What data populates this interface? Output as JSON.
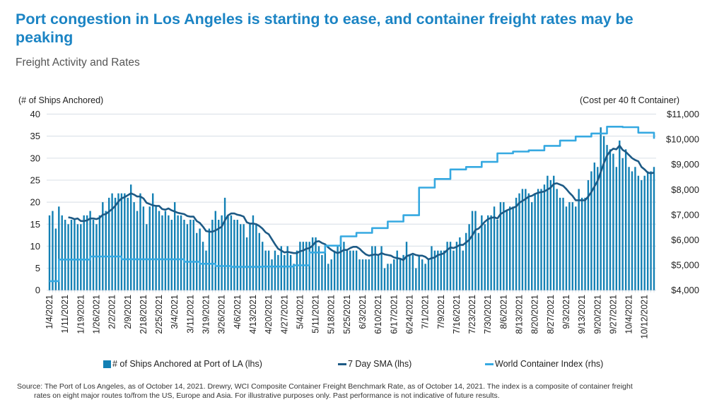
{
  "title": "Port congestion in Los Angeles is starting to ease, and container freight rates may be peaking",
  "subtitle": "Freight Activity and Rates",
  "footer": {
    "source_line1": "Source: The Port of Los Angeles, as of October 14, 2021. Drewry, WCI Composite Container Freight Benchmark Rate, as of October 14, 2021. The index is a composite of container freight",
    "source_line2": "rates on eight major routes to/from the US, Europe and Asia. For illustrative purposes only. Past performance is not indicative of future results."
  },
  "chart_data": {
    "type": "bar+line",
    "ylabel_left": "(# of Ships Anchored)",
    "ylabel_right": "(Cost per 40 ft Container)",
    "ylim_left": [
      0,
      40
    ],
    "ylim_right": [
      4000,
      11000
    ],
    "yticks_left": [
      "0",
      "5",
      "10",
      "15",
      "20",
      "25",
      "30",
      "35",
      "40"
    ],
    "yticks_right": [
      "$4,000",
      "$5,000",
      "$6,000",
      "$7,000",
      "$8,000",
      "$9,000",
      "$10,000",
      "$11,000"
    ],
    "grid": true,
    "legend_position": "bottom",
    "x_tick_labels": [
      "1/4/2021",
      "1/11/2021",
      "1/19/2021",
      "1/26/2021",
      "2/2/2021",
      "2/9/2021",
      "2/18/2021",
      "2/25/2021",
      "3/4/2021",
      "3/11/2021",
      "3/19/2021",
      "3/26/2021",
      "4/6/2021",
      "4/13/2021",
      "4/20/2021",
      "4/27/2021",
      "5/4/2021",
      "5/11/2021",
      "5/18/2021",
      "5/25/2021",
      "6/3/2021",
      "6/10/2021",
      "6/17/2021",
      "6/24/2021",
      "7/1/2021",
      "7/9/2021",
      "7/16/2021",
      "7/23/2021",
      "7/30/2021",
      "8/6/2021",
      "8/13/2021",
      "8/20/2021",
      "8/27/2021",
      "9/3/2021",
      "9/13/2021",
      "9/20/2021",
      "9/27/2021",
      "10/4/2021",
      "10/12/2021"
    ],
    "series": [
      {
        "name": "# of Ships Anchored at Port of LA (lhs)",
        "type": "bar",
        "axis": "left",
        "color": "#1380b4",
        "values": [
          17,
          18,
          14,
          19,
          17,
          16,
          15,
          16,
          16,
          15,
          15,
          17,
          17,
          18,
          16,
          15,
          17,
          20,
          18,
          21,
          22,
          21,
          22,
          22,
          22,
          21,
          24,
          20,
          18,
          22,
          19,
          15,
          19,
          22,
          19,
          18,
          17,
          18,
          17,
          16,
          20,
          17,
          17,
          16,
          15,
          16,
          16,
          13,
          14,
          11,
          9,
          14,
          16,
          18,
          16,
          17,
          21,
          17,
          17,
          16,
          16,
          15,
          15,
          12,
          15,
          17,
          15,
          13,
          11,
          9,
          9,
          7,
          9,
          8,
          10,
          8,
          10,
          8,
          6,
          9,
          11,
          11,
          11,
          11,
          12,
          12,
          10,
          8,
          9,
          6,
          7,
          9,
          10,
          12,
          11,
          9,
          9,
          9,
          9,
          7,
          7,
          7,
          7,
          10,
          10,
          8,
          10,
          5,
          6,
          6,
          7,
          9,
          7,
          8,
          11,
          8,
          8,
          5,
          8,
          7,
          6,
          7,
          10,
          9,
          9,
          9,
          9,
          11,
          11,
          9,
          11,
          12,
          9,
          13,
          15,
          18,
          18,
          13,
          17,
          15,
          17,
          17,
          19,
          16,
          20,
          20,
          18,
          19,
          19,
          21,
          22,
          23,
          23,
          22,
          20,
          22,
          23,
          23,
          24,
          26,
          25,
          26,
          23,
          21,
          21,
          19,
          20,
          20,
          19,
          23,
          21,
          21,
          25,
          27,
          29,
          28,
          37,
          35,
          33,
          32,
          31,
          28,
          34,
          30,
          32,
          28,
          27,
          28,
          26,
          25,
          26,
          27,
          27,
          28
        ]
      },
      {
        "name": "7 Day SMA (lhs)",
        "type": "line",
        "axis": "left",
        "color": "#1d5a85",
        "window_days": 7
      },
      {
        "name": "World Container Index (rhs)",
        "type": "step-line",
        "axis": "right",
        "color": "#36a9e1",
        "values": [
          4360,
          5220,
          5220,
          5340,
          5340,
          5230,
          5230,
          5230,
          5230,
          5130,
          5050,
          4960,
          4930,
          4930,
          4940,
          4940,
          4990,
          5500,
          5770,
          6140,
          6280,
          6470,
          6730,
          6980,
          8080,
          8420,
          8800,
          8900,
          9100,
          9440,
          9510,
          9560,
          9740,
          9950,
          10110,
          10230,
          10500,
          10480,
          10260,
          10020
        ]
      }
    ]
  }
}
